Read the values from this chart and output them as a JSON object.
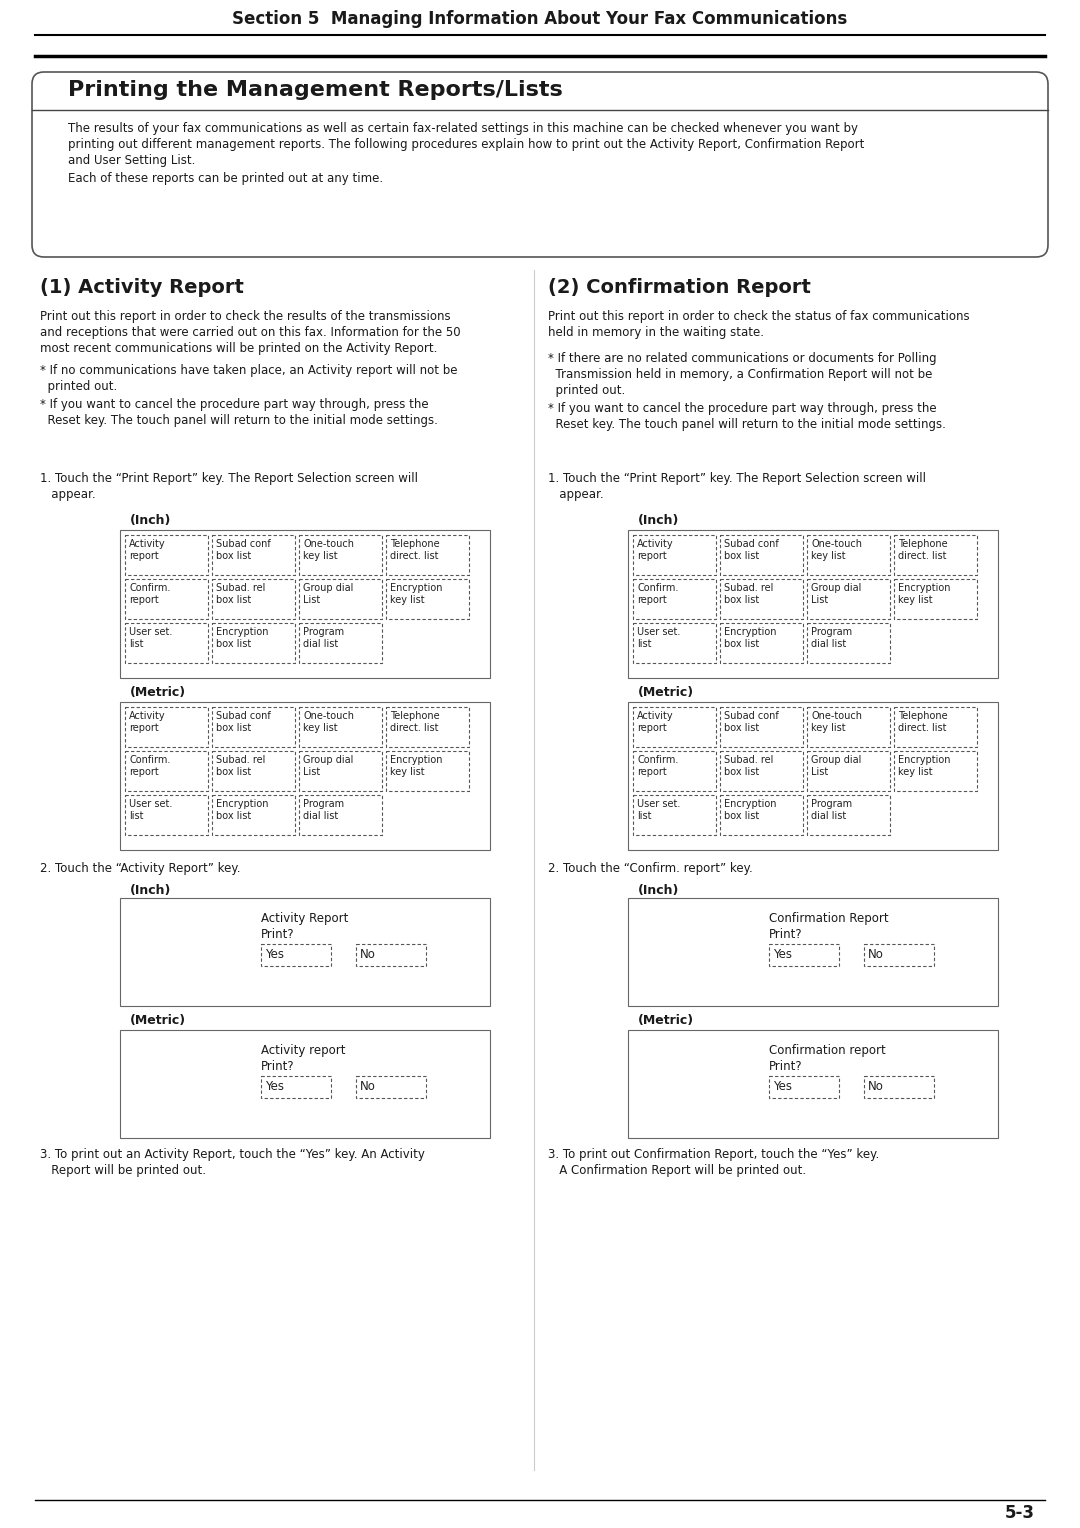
{
  "page_bg": "#ffffff",
  "section_title": "Section 5  Managing Information About Your Fax Communications",
  "main_title": "Printing the Management Reports/Lists",
  "intro_line1": "The results of your fax communications as well as certain fax-related settings in this machine can be checked whenever you want by",
  "intro_line2": "printing out different management reports. The following procedures explain how to print out the Activity Report, Confirmation Report",
  "intro_line3": "and User Setting List.",
  "intro_line4": "Each of these reports can be printed out at any time.",
  "left_title": "(1) Activity Report",
  "left_body1": "Print out this report in order to check the results of the transmissions",
  "left_body2": "and receptions that were carried out on this fax. Information for the 50",
  "left_body3": "most recent communications will be printed on the Activity Report.",
  "left_b1_1": "* If no communications have taken place, an Activity report will not be",
  "left_b1_2": "  printed out.",
  "left_b2_1": "* If you want to cancel the procedure part way through, press the",
  "left_b2_2": "  Reset key. The touch panel will return to the initial mode settings.",
  "right_title": "(2) Confirmation Report",
  "right_body1": "Print out this report in order to check the status of fax communications",
  "right_body2": "held in memory in the waiting state.",
  "right_b1_1": "* If there are no related communications or documents for Polling",
  "right_b1_2": "  Transmission held in memory, a Confirmation Report will not be",
  "right_b1_3": "  printed out.",
  "right_b2_1": "* If you want to cancel the procedure part way through, press the",
  "right_b2_2": "  Reset key. The touch panel will return to the initial mode settings.",
  "step1_txt": "1. Touch the “Print Report” key. The Report Selection screen will",
  "step1_txt2": "   appear.",
  "step2_left": "2. Touch the “Activity Report” key.",
  "step2_right": "2. Touch the “Confirm. report” key.",
  "step3_left1": "3. To print out an Activity Report, touch the “Yes” key. An Activity",
  "step3_left2": "   Report will be printed out.",
  "step3_right1": "3. To print out Confirmation Report, touch the “Yes” key.",
  "step3_right2": "   A Confirmation Report will be printed out.",
  "inch_label": "(Inch)",
  "metric_label": "(Metric)",
  "page_num": "5-3",
  "grid_row1": [
    "Activity\nreport",
    "Subad conf\nbox list",
    "One-touch\nkey list",
    "Telephone\ndirect. list"
  ],
  "grid_row2": [
    "Confirm.\nreport",
    "Subad. rel\nbox list",
    "Group dial\nList",
    "Encryption\nkey list"
  ],
  "grid_row3": [
    "User set.\nlist",
    "Encryption\nbox list",
    "Program\ndial list"
  ],
  "dialog_left_inch": [
    "Activity Report",
    "Print?"
  ],
  "dialog_left_metric": [
    "Activity report",
    "Print?"
  ],
  "dialog_right_inch": [
    "Confirmation Report",
    "Print?"
  ],
  "dialog_right_metric": [
    "Confirmation report",
    "Print?"
  ]
}
